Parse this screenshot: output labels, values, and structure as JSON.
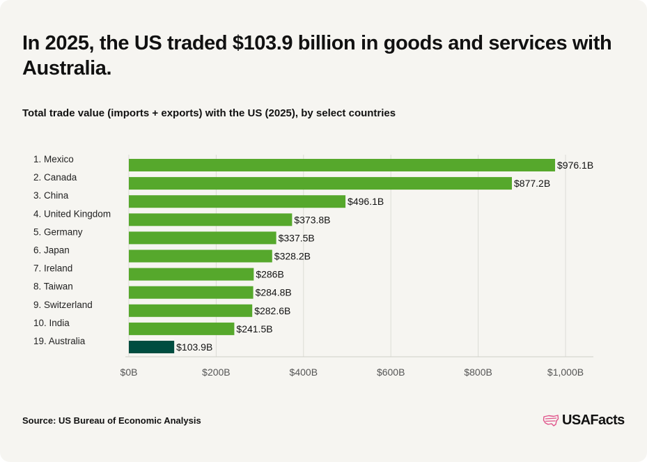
{
  "title": "In 2025, the US traded $103.9 billion in goods and services with Australia.",
  "subtitle": "Total trade value (imports + exports) with the US (2025), by select countries",
  "source": "Source: US Bureau of Economic Analysis",
  "brand": {
    "name": "USAFacts",
    "icon": "usa-flag-map-icon",
    "icon_color": "#e0528a"
  },
  "colors": {
    "bar": "#56a82c",
    "highlight": "#004d40",
    "grid": "#dcdcd6",
    "tick": "#555555",
    "card_bg": "#f6f5f1"
  },
  "chart_data": {
    "type": "bar",
    "orientation": "horizontal",
    "categories": [
      "1. Mexico",
      "2. Canada",
      "3. China",
      "4. United Kingdom",
      "5. Germany",
      "6. Japan",
      "7. Ireland",
      "8. Taiwan",
      "9. Switzerland",
      "10. India",
      "19. Australia"
    ],
    "values": [
      976.1,
      877.2,
      496.1,
      373.8,
      337.5,
      328.2,
      286,
      284.8,
      282.6,
      241.5,
      103.9
    ],
    "value_labels": [
      "$976.1B",
      "$877.2B",
      "$496.1B",
      "$373.8B",
      "$337.5B",
      "$328.2B",
      "$286B",
      "$284.8B",
      "$282.6B",
      "$241.5B",
      "$103.9B"
    ],
    "highlight": "19. Australia",
    "xlim": [
      0,
      1000
    ],
    "xticks": [
      0,
      200,
      400,
      600,
      800,
      1000
    ],
    "xtick_labels": [
      "$0B",
      "$200B",
      "$400B",
      "$600B",
      "$800B",
      "$1,000B"
    ],
    "grid": true
  }
}
